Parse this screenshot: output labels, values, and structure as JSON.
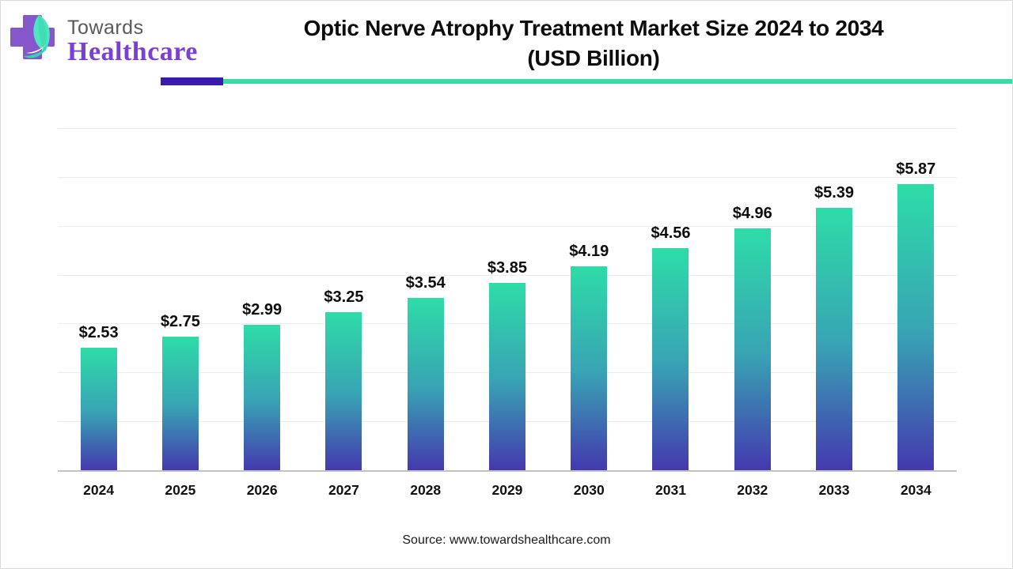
{
  "header": {
    "logo_line1": "Towards",
    "logo_line2": "Healthcare",
    "title_line1": "Optic Nerve Atrophy Treatment Market Size 2024 to 2034",
    "title_line2": "(USD Billion)"
  },
  "footer": {
    "source": "Source: www.towardshealthcare.com"
  },
  "chart_data": {
    "type": "bar",
    "title": "Optic Nerve Atrophy Treatment Market Size 2024 to 2034 (USD Billion)",
    "categories": [
      "2024",
      "2025",
      "2026",
      "2027",
      "2028",
      "2029",
      "2030",
      "2031",
      "2032",
      "2033",
      "2034"
    ],
    "values": [
      2.53,
      2.75,
      2.99,
      3.25,
      3.54,
      3.85,
      4.19,
      4.56,
      4.96,
      5.39,
      5.87
    ],
    "value_labels": [
      "$2.53",
      "$2.75",
      "$2.99",
      "$3.25",
      "$3.54",
      "$3.85",
      "$4.19",
      "$4.56",
      "$4.96",
      "$5.39",
      "$5.87"
    ],
    "xlabel": "",
    "ylabel": "",
    "ylim": [
      0,
      7
    ],
    "gridline_count": 7,
    "grid": true,
    "legend": "none",
    "colors": {
      "bar_gradient_top": "#2edca8",
      "bar_gradient_mid": "#38a3b4",
      "bar_gradient_bottom": "#4438ae",
      "gridline": "#ececec",
      "axis_line": "#c2c2c2",
      "accent_purple": "#3a1bb0",
      "accent_teal": "#3bd8a8",
      "logo_purple": "#7b3fd1",
      "logo_gray": "#58595b"
    }
  }
}
